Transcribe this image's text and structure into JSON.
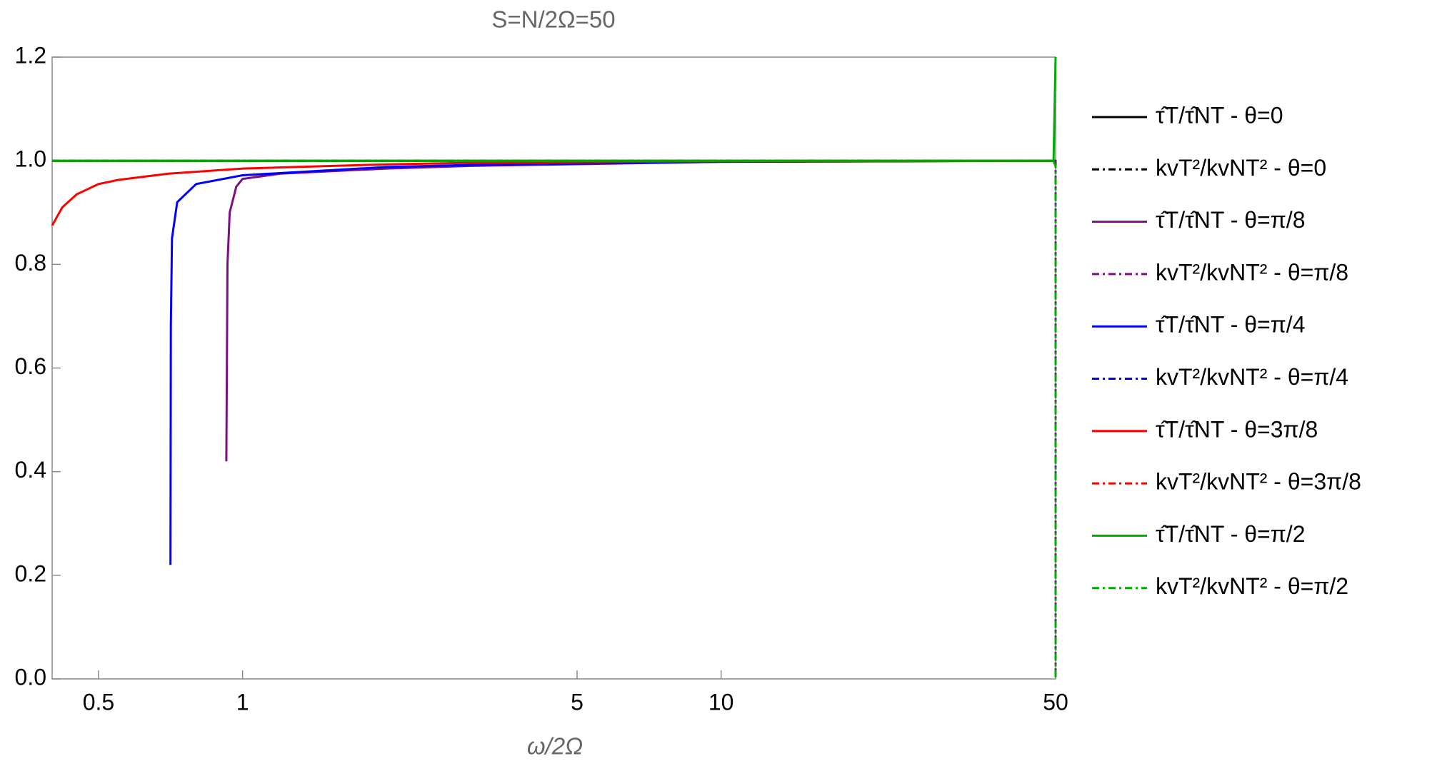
{
  "chart_data": {
    "type": "line",
    "title": "S=N/2Ω=50",
    "x_label": "ω/2Ω",
    "x_scale": "log",
    "xlim": [
      0.4,
      50
    ],
    "ylim": [
      0,
      1.2
    ],
    "xticks": [
      0.5,
      1,
      5,
      10,
      50
    ],
    "yticks": [
      {
        "value": 0,
        "label": "0.0"
      },
      0.2,
      0.4,
      0.6,
      0.8,
      {
        "value": 1,
        "label": "1.0"
      },
      1.2
    ],
    "legend": "right",
    "series": [
      {
        "name": "τ̂T/τ̂NT - θ=0",
        "color": "#000000",
        "dash": "solid",
        "x": [
          0.4,
          1,
          10,
          49.5,
          50
        ],
        "values": [
          1,
          1,
          1,
          1,
          1
        ]
      },
      {
        "name": "kvT²/kvNT² - θ=0",
        "color": "#000000",
        "dash": "dashdot",
        "x": [
          0.4,
          10,
          49.5,
          50,
          50
        ],
        "values": [
          1,
          1,
          1,
          0.99,
          0
        ]
      },
      {
        "name": "τ̂T/τ̂NT - θ=π/8",
        "color": "#7b0e86",
        "dash": "solid",
        "x": [
          0.925,
          0.93,
          0.94,
          0.97,
          1,
          1.2,
          2,
          3,
          10,
          49.5
        ],
        "values": [
          0.42,
          0.8,
          0.9,
          0.95,
          0.965,
          0.975,
          0.985,
          0.99,
          0.998,
          1
        ]
      },
      {
        "name": "kvT²/kvNT² - θ=π/8",
        "color": "#7b0e86",
        "dash": "dashdot",
        "x": [
          0.4,
          10,
          49.5,
          50,
          50
        ],
        "values": [
          1,
          1,
          1,
          1,
          0
        ]
      },
      {
        "name": "τ̂T/τ̂NT - θ=π/4",
        "color": "#0000ff",
        "dash": "solid",
        "x": [
          0.707,
          0.708,
          0.712,
          0.73,
          0.8,
          1,
          2,
          3,
          10,
          49.5
        ],
        "values": [
          0.22,
          0.68,
          0.85,
          0.92,
          0.955,
          0.972,
          0.988,
          0.992,
          0.998,
          1
        ]
      },
      {
        "name": "kvT²/kvNT² - θ=π/4",
        "color": "#0000ff",
        "dash": "dashdot",
        "x": [
          0.4,
          10,
          49.5,
          50,
          50
        ],
        "values": [
          1,
          1,
          1,
          0.99,
          0
        ]
      },
      {
        "name": "τ̂T/τ̂NT - θ=3π/8",
        "color": "#ff0000",
        "dash": "solid",
        "x": [
          0.4,
          0.42,
          0.45,
          0.5,
          0.55,
          0.7,
          1,
          2,
          3,
          10,
          49.5
        ],
        "values": [
          0.875,
          0.91,
          0.935,
          0.955,
          0.963,
          0.975,
          0.985,
          0.993,
          0.996,
          0.999,
          1
        ]
      },
      {
        "name": "kvT²/kvNT² - θ=3π/8",
        "color": "#ff0000",
        "dash": "dashdot",
        "x": [
          0.4,
          10,
          49.5,
          50,
          50
        ],
        "values": [
          1,
          1,
          1,
          0.99,
          0
        ]
      },
      {
        "name": "τ̂T/τ̂NT - θ=π/2",
        "color": "#00aa00",
        "dash": "solid",
        "x": [
          0.4,
          1,
          10,
          49.5,
          50
        ],
        "values": [
          1,
          1,
          1,
          1,
          1.2
        ]
      },
      {
        "name": "kvT²/kvNT² - θ=π/2",
        "color": "#00aa00",
        "dash": "dashdot",
        "x": [
          0.4,
          10,
          49.5,
          50,
          50
        ],
        "values": [
          1,
          1,
          1,
          0.99,
          0
        ]
      }
    ]
  }
}
